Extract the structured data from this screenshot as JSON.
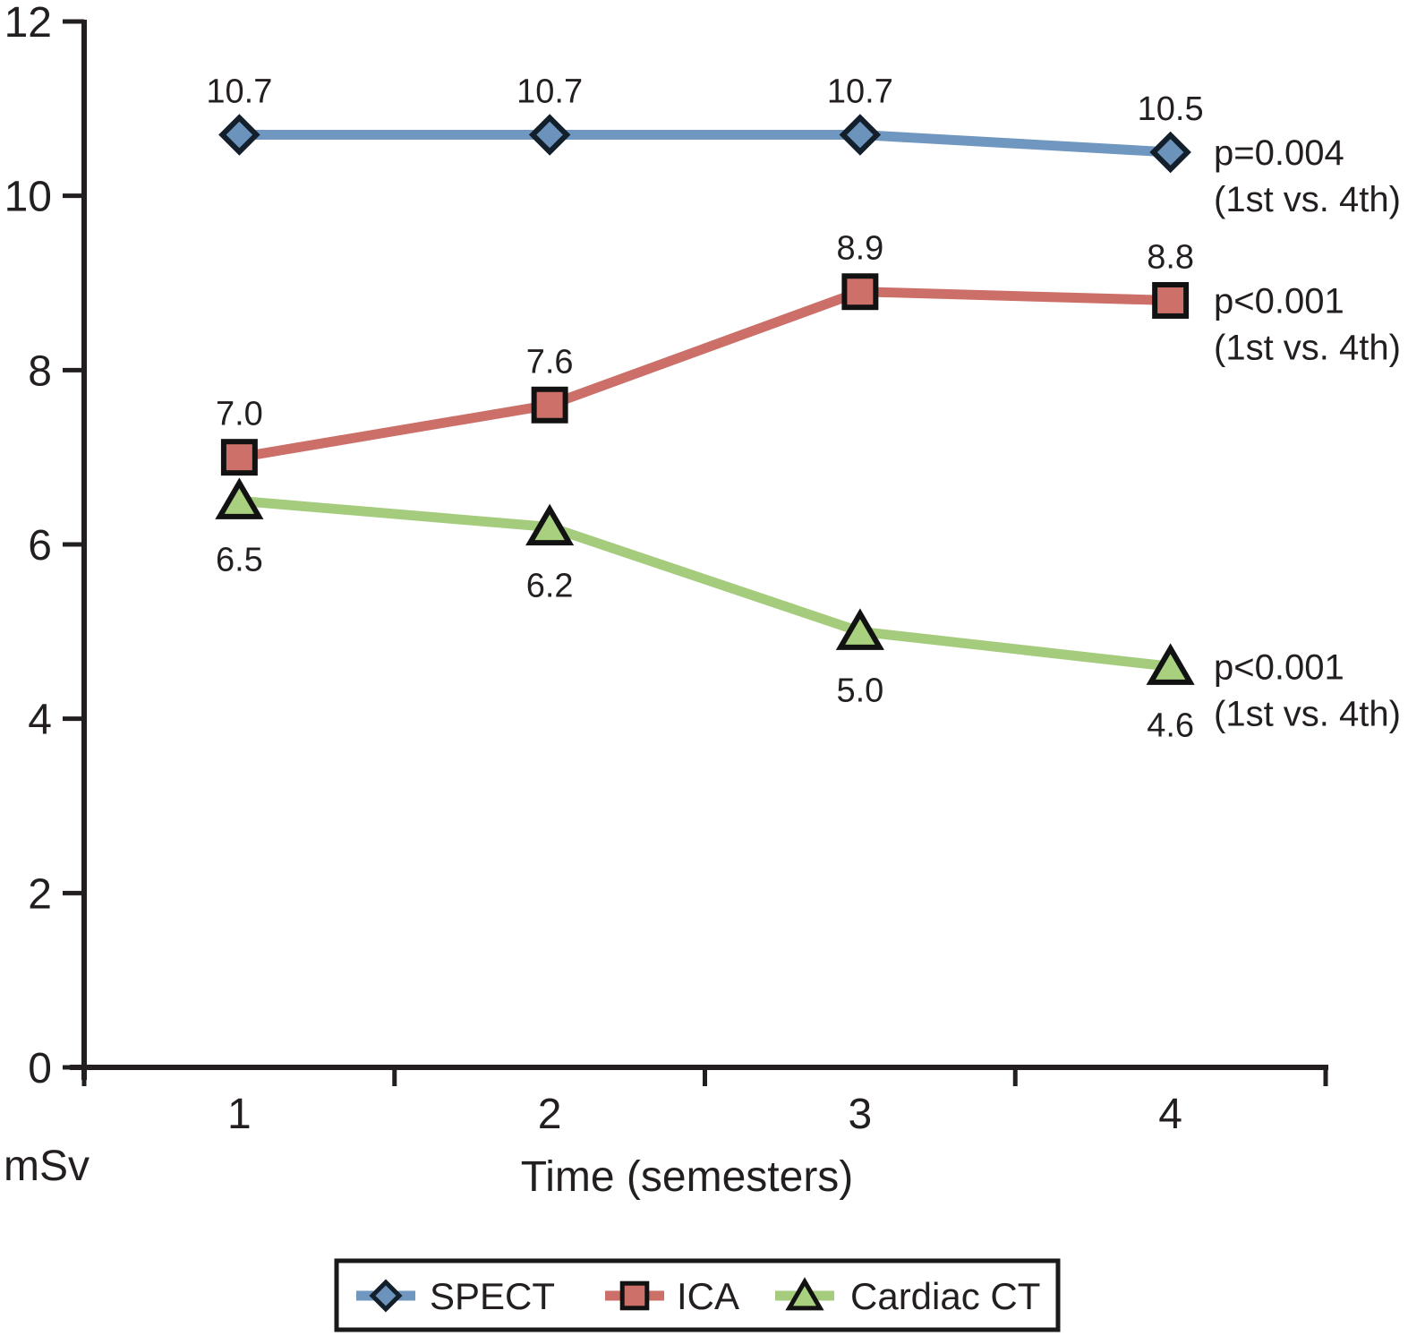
{
  "figure": {
    "background": "#ffffff",
    "text_color": "#231f20",
    "axis_color": "#231f20",
    "legend_border_color": "#1a1a1a"
  },
  "chart_data": {
    "type": "line",
    "x": [
      1,
      2,
      3,
      4
    ],
    "xlabel": "Time (semesters)",
    "ylabel": "mSv",
    "ylim": [
      0,
      12
    ],
    "y_ticks": [
      0,
      2,
      4,
      6,
      8,
      10,
      12
    ],
    "grid": false,
    "legend_position": "bottom",
    "series": [
      {
        "name": "SPECT",
        "marker": "diamond",
        "line_color": "#6f97bf",
        "marker_fill": "#6b93bb",
        "marker_border": "#131f2b",
        "values": [
          10.7,
          10.7,
          10.7,
          10.5
        ],
        "labels": [
          "10.7",
          "10.7",
          "10.7",
          "10.5"
        ],
        "label_position": "above",
        "annotation": [
          "p=0.004",
          "(1st vs. 4th)"
        ]
      },
      {
        "name": "ICA",
        "marker": "square",
        "line_color": "#cb6f68",
        "marker_fill": "#cd7069",
        "marker_border": "#121212",
        "values": [
          7.0,
          7.6,
          8.9,
          8.8
        ],
        "labels": [
          "7.0",
          "7.6",
          "8.9",
          "8.8"
        ],
        "label_position": "above",
        "annotation": [
          "p<0.001",
          "(1st vs. 4th)"
        ]
      },
      {
        "name": "Cardiac CT",
        "marker": "triangle",
        "line_color": "#a4cc7c",
        "marker_fill": "#a9d07f",
        "marker_border": "#121212",
        "values": [
          6.5,
          6.2,
          5.0,
          4.6
        ],
        "labels": [
          "6.5",
          "6.2",
          "5.0",
          "4.6"
        ],
        "label_position": "below",
        "annotation": [
          "p<0.001",
          "(1st vs. 4th)"
        ]
      }
    ]
  }
}
